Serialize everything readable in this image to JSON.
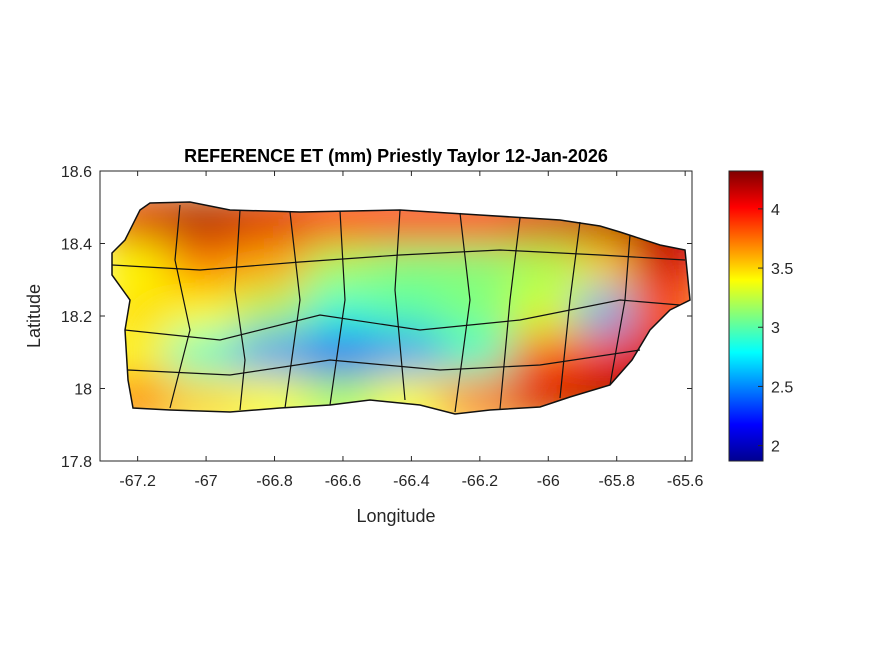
{
  "chart_data": {
    "type": "heatmap",
    "title": "REFERENCE ET (mm) Priestly Taylor 12-Jan-2026",
    "xlabel": "Longitude",
    "ylabel": "Latitude",
    "xlim": [
      -67.31,
      -65.58
    ],
    "ylim": [
      17.8,
      18.6
    ],
    "xticks": [
      -67.2,
      -67,
      -66.8,
      -66.6,
      -66.4,
      -66.2,
      -66,
      -65.8,
      -65.6
    ],
    "xtick_labels": [
      "-67.2",
      "-67",
      "-66.8",
      "-66.6",
      "-66.4",
      "-66.2",
      "-66",
      "-65.8",
      "-65.6"
    ],
    "yticks": [
      17.8,
      18,
      18.2,
      18.4,
      18.6
    ],
    "ytick_labels": [
      "17.8",
      "18",
      "18.2",
      "18.4",
      "18.6"
    ],
    "colorbar": {
      "colormap": "jet",
      "clim": [
        1.87,
        4.32
      ],
      "ticks": [
        2,
        2.5,
        3,
        3.5,
        4
      ],
      "tick_labels": [
        "2",
        "2.5",
        "3",
        "3.5",
        "4"
      ],
      "placement": "right"
    },
    "grid": {
      "lons": [
        -67.2,
        -67.0,
        -66.8,
        -66.6,
        -66.4,
        -66.2,
        -66.0,
        -65.8,
        -65.65
      ],
      "lats": [
        18.47,
        18.33,
        18.2,
        18.08,
        17.97
      ],
      "values": [
        [
          4.1,
          4.2,
          4.1,
          4.0,
          4.0,
          4.0,
          4.1,
          4.2,
          4.25
        ],
        [
          3.4,
          3.7,
          3.6,
          3.2,
          3.1,
          3.1,
          3.2,
          3.5,
          4.1
        ],
        [
          3.5,
          3.4,
          3.2,
          2.9,
          3.0,
          3.1,
          3.3,
          2.6,
          3.8
        ],
        [
          3.4,
          2.9,
          2.5,
          2.2,
          2.5,
          2.9,
          3.8,
          3.9,
          4.1
        ],
        [
          3.7,
          3.5,
          3.4,
          3.2,
          3.4,
          3.7,
          4.1,
          4.2,
          4.2
        ]
      ]
    }
  }
}
